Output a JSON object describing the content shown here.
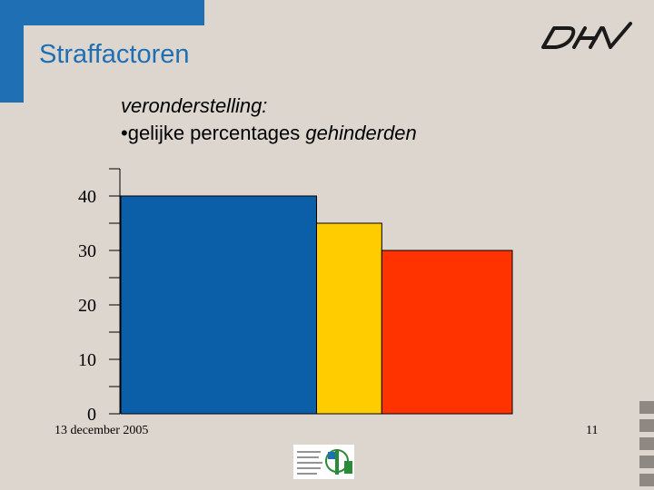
{
  "slide": {
    "title": "Straffactoren",
    "assumption_heading": "veronderstelling:",
    "assumption_bullet_prefix": "•gelijke percentages ",
    "assumption_bullet_em": "gehinderden",
    "date": "13 december 2005",
    "page_number": "11"
  },
  "colors": {
    "accent": "#1f6fb5",
    "background": "#ddd6cf"
  },
  "chart_data": {
    "type": "bar",
    "title": "",
    "xlabel": "",
    "ylabel": "",
    "ylim": [
      0,
      45
    ],
    "yticks": [
      0,
      10,
      20,
      30,
      40
    ],
    "values": [
      40,
      35,
      30
    ],
    "relative_widths": [
      3,
      1,
      2
    ],
    "colors": [
      "#0b5ea8",
      "#ffcc00",
      "#ff3300"
    ]
  }
}
